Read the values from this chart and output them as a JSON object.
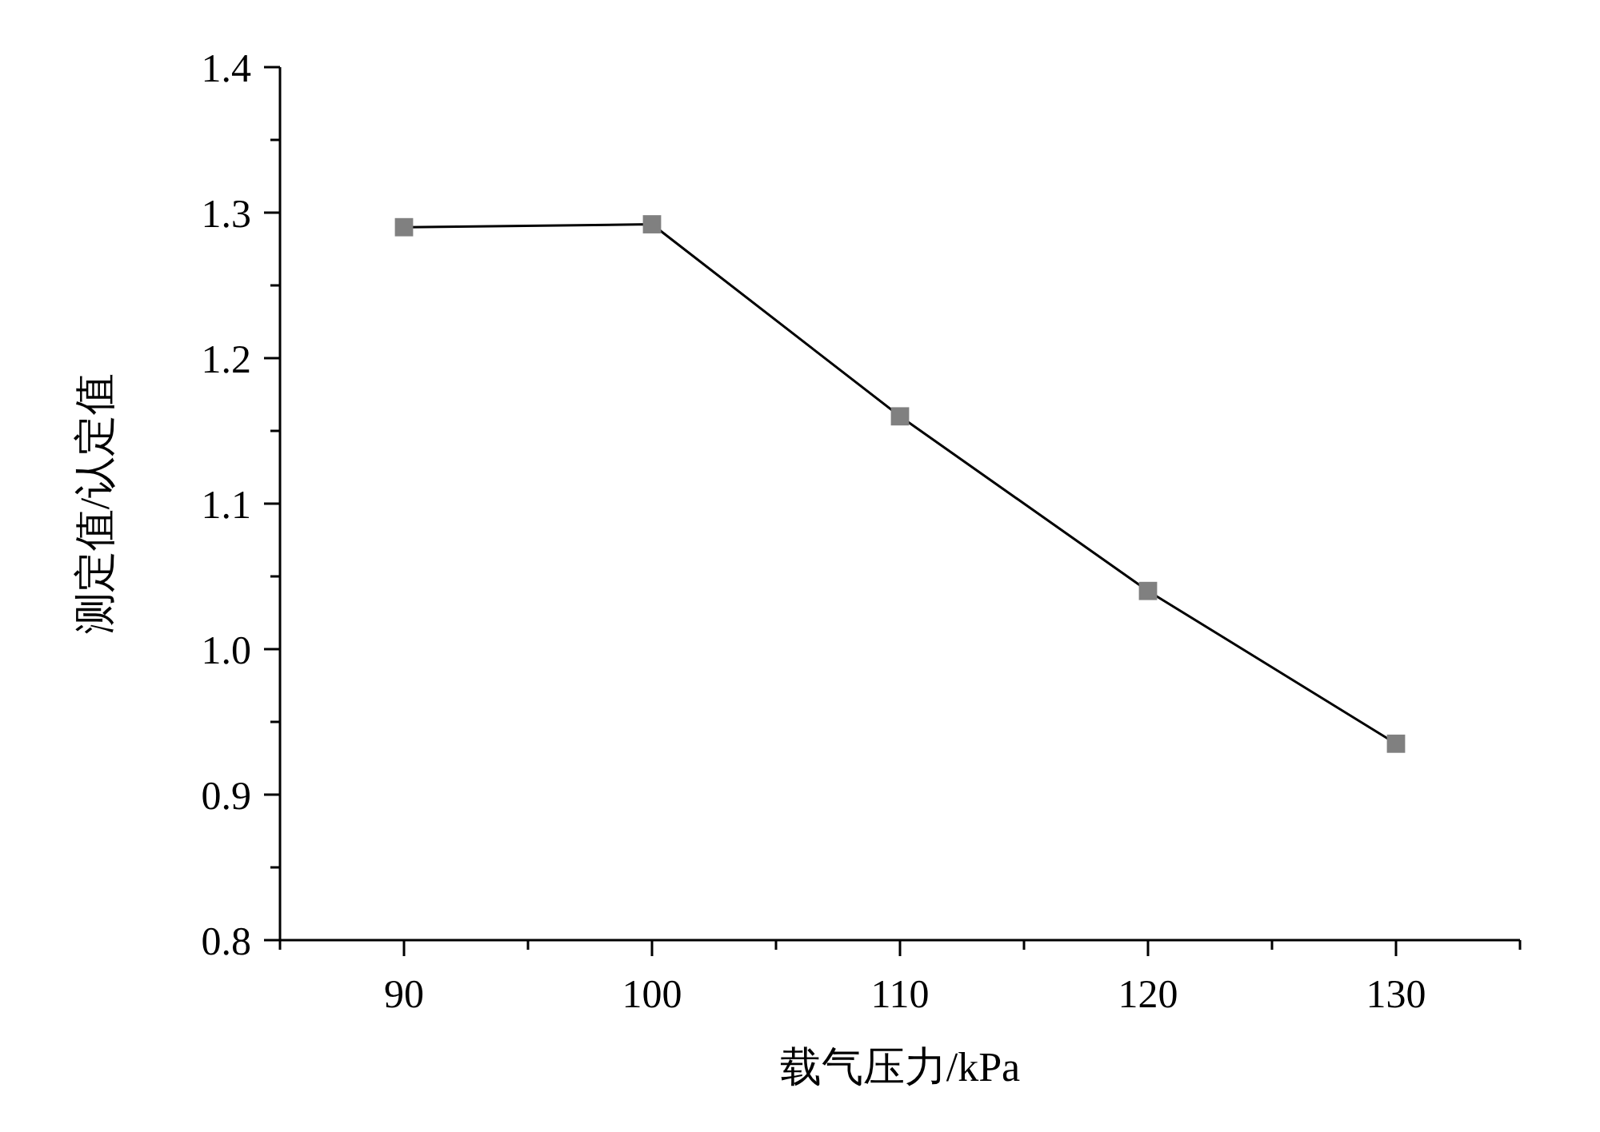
{
  "chart_data": {
    "type": "line",
    "xlabel": "载气压力/kPa",
    "ylabel": "测定值/认定值",
    "x": [
      90,
      100,
      110,
      120,
      130
    ],
    "series": [
      {
        "color": "#000000",
        "colors": [
          "#808080",
          "#808080",
          "#808080",
          "#808080",
          "#808080"
        ],
        "values": [
          1.29,
          1.292,
          1.16,
          1.04,
          0.935
        ]
      }
    ],
    "marker": "square",
    "line_style": "solid",
    "grid": false,
    "xlim": [
      85,
      135
    ],
    "xticks": [
      {
        "value": 85,
        "label": null
      },
      90,
      {
        "value": 95,
        "label": null
      },
      100,
      {
        "value": 105,
        "label": null
      },
      110,
      {
        "value": 115,
        "label": null
      },
      120,
      {
        "value": 125,
        "label": null
      },
      130,
      {
        "value": 135,
        "label": null
      }
    ],
    "ylim": [
      0.8,
      1.4
    ],
    "yticks": [
      {
        "value": 0.8,
        "label": "0.8"
      },
      {
        "value": 0.85,
        "label": null
      },
      {
        "value": 0.9,
        "label": "0.9"
      },
      {
        "value": 0.95,
        "label": null
      },
      {
        "value": 1.0,
        "label": "1.0"
      },
      {
        "value": 1.05,
        "label": null
      },
      {
        "value": 1.1,
        "label": "1.1"
      },
      {
        "value": 1.15,
        "label": null
      },
      {
        "value": 1.2,
        "label": "1.2"
      },
      {
        "value": 1.25,
        "label": null
      },
      {
        "value": 1.3,
        "label": "1.3"
      },
      {
        "value": 1.35,
        "label": null
      },
      {
        "value": 1.4,
        "label": "1.4"
      }
    ]
  }
}
